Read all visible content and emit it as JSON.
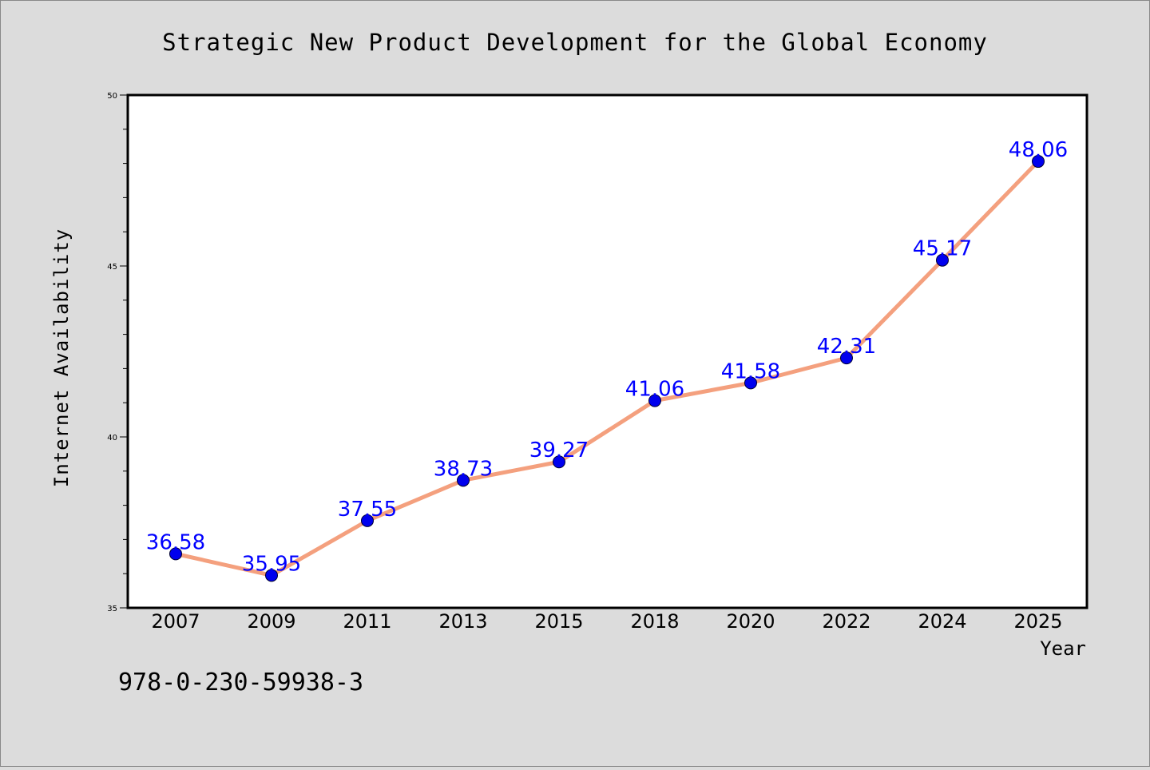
{
  "chart_data": {
    "type": "line",
    "title": "Strategic New Product Development for the Global Economy",
    "xlabel": "Year",
    "ylabel": "Internet Availability",
    "categories": [
      "2007",
      "2009",
      "2011",
      "2013",
      "2015",
      "2018",
      "2020",
      "2022",
      "2024",
      "2025"
    ],
    "series": [
      {
        "values": [
          36.58,
          35.95,
          37.55,
          38.73,
          39.27,
          41.06,
          41.58,
          42.31,
          45.17,
          48.06
        ],
        "labels": [
          "36.58",
          "35.95",
          "37.55",
          "38.73",
          "39.27",
          "41.06",
          "41.58",
          "42.31",
          "45.17",
          "48.06"
        ]
      }
    ],
    "ylim": [
      35,
      50
    ],
    "yticks": [
      "35",
      "40",
      "45",
      "50"
    ],
    "grid": false,
    "legend": "none",
    "footnote": "978-0-230-59938-3",
    "colors": {
      "background": "#dcdcdc",
      "plot_area": "#ffffff",
      "line": "#f4a07e",
      "marker": "#0000ee",
      "data_label": "#0000ff"
    }
  }
}
